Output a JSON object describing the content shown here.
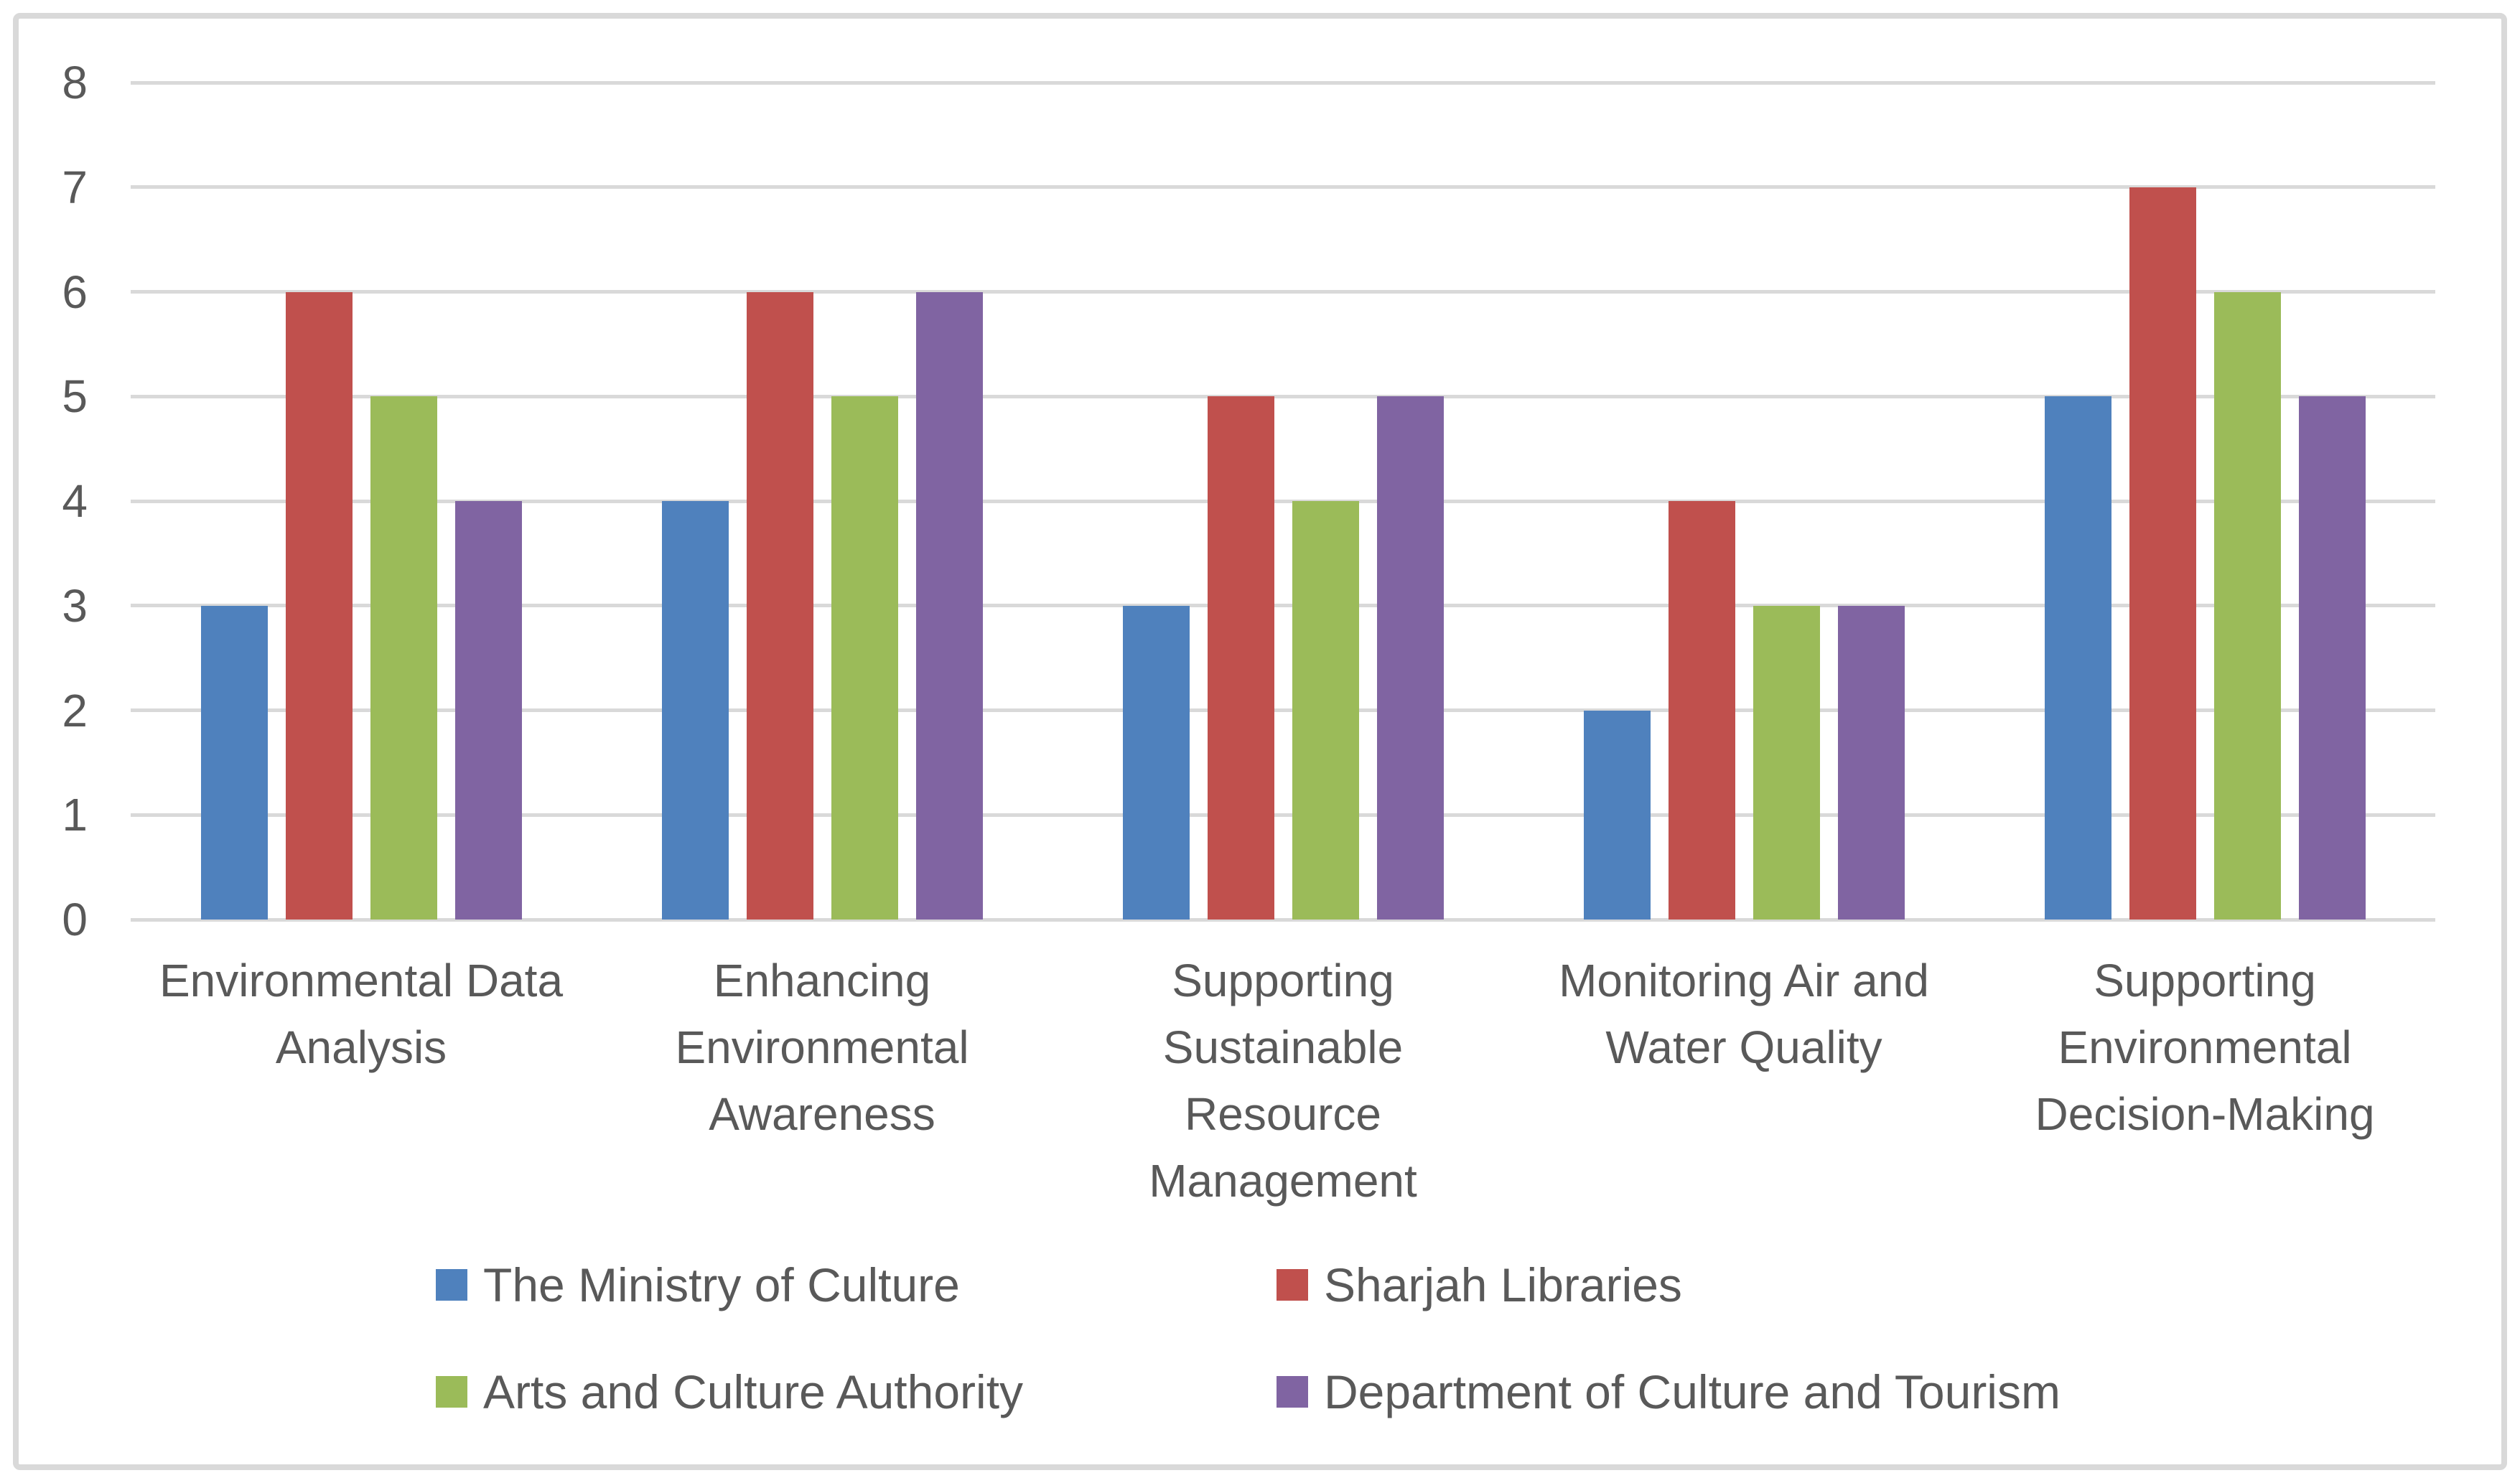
{
  "chart_data": {
    "type": "bar",
    "title": "",
    "categories": [
      "Environmental Data\nAnalysis",
      "Enhancing\nEnvironmental\nAwareness",
      "Supporting\nSustainable\nResource\nManagement",
      "Monitoring Air and\nWater Quality",
      "Supporting\nEnvironmental\nDecision-Making"
    ],
    "series": [
      {
        "name": "The Ministry of Culture",
        "color": "#4F81BD",
        "values": [
          3,
          4,
          3,
          2,
          5
        ]
      },
      {
        "name": "Sharjah Libraries",
        "color": "#C0504D",
        "values": [
          6,
          6,
          5,
          4,
          7
        ]
      },
      {
        "name": "Arts and Culture Authority",
        "color": "#9BBB59",
        "values": [
          5,
          5,
          4,
          3,
          6
        ]
      },
      {
        "name": "Department of Culture and Tourism",
        "color": "#8064A2",
        "values": [
          4,
          6,
          5,
          3,
          5
        ]
      }
    ],
    "ylim": [
      0,
      8
    ],
    "yticks": [
      0,
      1,
      2,
      3,
      4,
      5,
      6,
      7,
      8
    ],
    "grid": true,
    "legend_position": "bottom",
    "legend_layout": "two-columns-two-rows",
    "colors": {
      "gridline": "#D9D9D9",
      "frame_border": "#D9D9D9",
      "axis_text": "#595959",
      "background": "#FFFFFF"
    }
  }
}
